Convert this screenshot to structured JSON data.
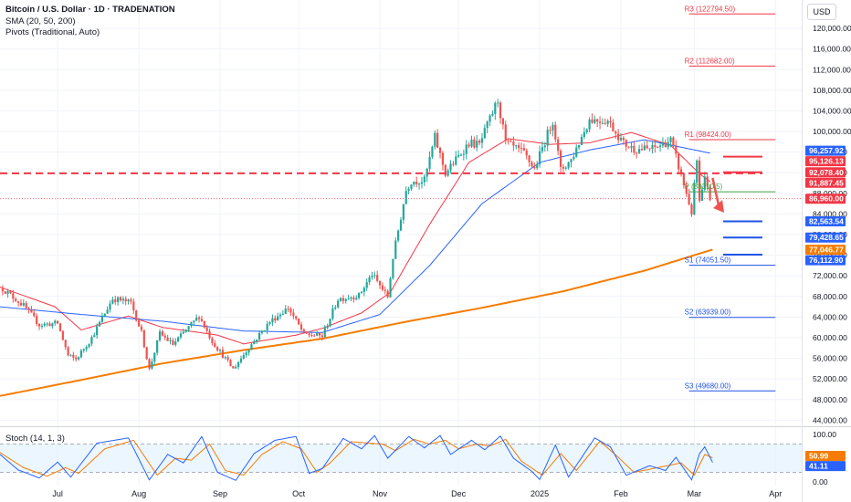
{
  "header": {
    "title": "Bitcoin / U.S. Dollar · 1D · TRADENATION",
    "sma_legend": "SMA (20, 50, 200)",
    "pivots_legend": "Pivots (Traditional, Auto)",
    "stoch_legend": "Stoch (14, 1, 3)",
    "currency": "USD"
  },
  "colors": {
    "up": "#26a69a",
    "down": "#ef5350",
    "sma20": "#f23645",
    "sma50": "#2962ff",
    "sma200": "#f57c00",
    "pivot_r": "#f23645",
    "pivot_p": "#43a047",
    "pivot_s": "#1e53e5",
    "stoch_k": "#2962ff",
    "stoch_d": "#f57c00"
  },
  "chart_data": {
    "type": "candlestick",
    "price_axis": {
      "ticks": [
        44000,
        48000,
        52000,
        56000,
        60000,
        64000,
        68000,
        72000,
        76000,
        80000,
        84000,
        88000,
        92000,
        96000,
        100000,
        104000,
        108000,
        112000,
        116000,
        120000
      ],
      "tick_labels": [
        "44,000.00",
        "48,000.00",
        "52,000.00",
        "56,000.00",
        "60,000.00",
        "64,000.00",
        "68,000.00",
        "72,000.00",
        "76,000.00",
        "80,000.00",
        "84,000.00",
        "88,000.00",
        "92,000.00",
        "96,000.00",
        "100,000.00",
        "104,000.00",
        "108,000.00",
        "112,000.00",
        "116,000.00",
        "120,000.00"
      ],
      "ylim": [
        43000,
        125500
      ]
    },
    "time_axis": {
      "labels": [
        {
          "label": "Jul",
          "date": "2024-07-01"
        },
        {
          "label": "Aug",
          "date": "2024-08-01"
        },
        {
          "label": "Sep",
          "date": "2024-09-01"
        },
        {
          "label": "Oct",
          "date": "2024-10-01"
        },
        {
          "label": "Nov",
          "date": "2024-11-01"
        },
        {
          "label": "Dec",
          "date": "2024-12-01"
        },
        {
          "label": "2025",
          "date": "2025-01-01"
        },
        {
          "label": "Feb",
          "date": "2025-02-01"
        },
        {
          "label": "Mar",
          "date": "2025-03-01"
        },
        {
          "label": "Apr",
          "date": "2025-04-01"
        }
      ],
      "range": [
        "2024-06-09",
        "2025-04-11"
      ]
    },
    "price_anchors": [
      {
        "date": "2024-06-10",
        "close": 69500
      },
      {
        "date": "2024-06-18",
        "close": 66200
      },
      {
        "date": "2024-06-24",
        "close": 62500
      },
      {
        "date": "2024-07-01",
        "close": 62800
      },
      {
        "date": "2024-07-05",
        "close": 56500
      },
      {
        "date": "2024-07-08",
        "close": 55800
      },
      {
        "date": "2024-07-14",
        "close": 60000
      },
      {
        "date": "2024-07-22",
        "close": 67600
      },
      {
        "date": "2024-07-29",
        "close": 66800
      },
      {
        "date": "2024-08-02",
        "close": 61000
      },
      {
        "date": "2024-08-05",
        "close": 53800
      },
      {
        "date": "2024-08-09",
        "close": 60800
      },
      {
        "date": "2024-08-14",
        "close": 58700
      },
      {
        "date": "2024-08-24",
        "close": 64200
      },
      {
        "date": "2024-08-29",
        "close": 59300
      },
      {
        "date": "2024-09-06",
        "close": 53900
      },
      {
        "date": "2024-09-12",
        "close": 58100
      },
      {
        "date": "2024-09-20",
        "close": 63100
      },
      {
        "date": "2024-09-27",
        "close": 65800
      },
      {
        "date": "2024-10-03",
        "close": 60700
      },
      {
        "date": "2024-10-10",
        "close": 60300
      },
      {
        "date": "2024-10-16",
        "close": 67500
      },
      {
        "date": "2024-10-24",
        "close": 68200
      },
      {
        "date": "2024-10-29",
        "close": 72300
      },
      {
        "date": "2024-11-04",
        "close": 67900
      },
      {
        "date": "2024-11-06",
        "close": 75600
      },
      {
        "date": "2024-11-11",
        "close": 88600
      },
      {
        "date": "2024-11-13",
        "close": 90400
      },
      {
        "date": "2024-11-18",
        "close": 90500
      },
      {
        "date": "2024-11-22",
        "close": 98900
      },
      {
        "date": "2024-11-26",
        "close": 91900
      },
      {
        "date": "2024-12-05",
        "close": 97800
      },
      {
        "date": "2024-12-09",
        "close": 97400
      },
      {
        "date": "2024-12-16",
        "close": 106100
      },
      {
        "date": "2024-12-19",
        "close": 97800
      },
      {
        "date": "2024-12-26",
        "close": 95700
      },
      {
        "date": "2024-12-30",
        "close": 92700
      },
      {
        "date": "2025-01-06",
        "close": 102200
      },
      {
        "date": "2025-01-09",
        "close": 92500
      },
      {
        "date": "2025-01-13",
        "close": 94500
      },
      {
        "date": "2025-01-20",
        "close": 102300
      },
      {
        "date": "2025-01-27",
        "close": 102100
      },
      {
        "date": "2025-02-02",
        "close": 97700
      },
      {
        "date": "2025-02-06",
        "close": 96600
      },
      {
        "date": "2025-02-13",
        "close": 96600
      },
      {
        "date": "2025-02-20",
        "close": 98300
      },
      {
        "date": "2025-02-24",
        "close": 91500
      },
      {
        "date": "2025-02-28",
        "close": 84300
      },
      {
        "date": "2025-03-02",
        "close": 94300
      },
      {
        "date": "2025-03-03",
        "close": 86100
      },
      {
        "date": "2025-03-05",
        "close": 90600
      },
      {
        "date": "2025-03-07",
        "close": 86900
      }
    ],
    "sma_anchors": {
      "SMA 20": [
        [
          "2024-06-09",
          69800
        ],
        [
          "2024-06-30",
          66000
        ],
        [
          "2024-07-10",
          61500
        ],
        [
          "2024-07-28",
          64200
        ],
        [
          "2024-08-10",
          62000
        ],
        [
          "2024-08-31",
          60500
        ],
        [
          "2024-09-10",
          58800
        ],
        [
          "2024-09-30",
          60500
        ],
        [
          "2024-10-10",
          61800
        ],
        [
          "2024-10-25",
          64800
        ],
        [
          "2024-11-05",
          68800
        ],
        [
          "2024-11-20",
          82000
        ],
        [
          "2024-12-05",
          94000
        ],
        [
          "2024-12-20",
          98600
        ],
        [
          "2025-01-05",
          97500
        ],
        [
          "2025-01-20",
          97800
        ],
        [
          "2025-02-05",
          99800
        ],
        [
          "2025-02-20",
          97300
        ],
        [
          "2025-03-03",
          91800
        ],
        [
          "2025-03-07",
          90300
        ]
      ],
      "SMA 50": [
        [
          "2024-06-09",
          66000
        ],
        [
          "2024-07-10",
          64500
        ],
        [
          "2024-08-10",
          63200
        ],
        [
          "2024-09-10",
          61300
        ],
        [
          "2024-10-10",
          61000
        ],
        [
          "2024-11-01",
          64500
        ],
        [
          "2024-11-20",
          74000
        ],
        [
          "2024-12-10",
          86000
        ],
        [
          "2025-01-01",
          94000
        ],
        [
          "2025-01-20",
          96400
        ],
        [
          "2025-02-10",
          98400
        ],
        [
          "2025-03-07",
          95800
        ]
      ],
      "SMA 200": [
        [
          "2024-06-09",
          48700
        ],
        [
          "2024-07-10",
          51800
        ],
        [
          "2024-08-10",
          55000
        ],
        [
          "2024-09-10",
          57600
        ],
        [
          "2024-10-10",
          59800
        ],
        [
          "2024-11-10",
          63000
        ],
        [
          "2024-12-10",
          65800
        ],
        [
          "2025-01-10",
          69000
        ],
        [
          "2025-02-10",
          73000
        ],
        [
          "2025-03-08",
          77100
        ]
      ]
    },
    "pivots": [
      {
        "name": "R3",
        "label": "R3 (122794.50)",
        "value": 122794.5,
        "from": "2025-02-27",
        "to": "2025-04-01"
      },
      {
        "name": "R2",
        "label": "R2 (112682.00)",
        "value": 112682.0,
        "from": "2025-02-27",
        "to": "2025-04-01"
      },
      {
        "name": "R1",
        "label": "R1 (98424.00)",
        "value": 98424.0,
        "from": "2025-02-27",
        "to": "2025-04-01"
      },
      {
        "name": "P",
        "label": "P (88310.5)",
        "value": 88310.5,
        "from": "2025-02-27",
        "to": "2025-04-01"
      },
      {
        "name": "S1",
        "label": "S1 (74051.50)",
        "value": 74051.5,
        "from": "2025-02-27",
        "to": "2025-04-01"
      },
      {
        "name": "S2",
        "label": "S2 (63939.00)",
        "value": 63939.0,
        "from": "2025-02-27",
        "to": "2025-04-01"
      },
      {
        "name": "S3",
        "label": "S3 (49680.00)",
        "value": 49680.0,
        "from": "2025-02-27",
        "to": "2025-04-01"
      }
    ],
    "drawn_levels": [
      {
        "value": 91887.45,
        "style": "dashed",
        "color": "#f23645",
        "from": "2024-06-09",
        "to": "2025-03-27"
      },
      {
        "value": 92078.4,
        "style": "solid",
        "color": "#f23645",
        "from": "2025-03-12",
        "to": "2025-03-27"
      },
      {
        "value": 95126.13,
        "style": "solid",
        "color": "#f23645",
        "from": "2025-03-12",
        "to": "2025-03-27"
      },
      {
        "value": 82563.54,
        "style": "solid",
        "color": "#1e53e5",
        "from": "2025-03-12",
        "to": "2025-03-27"
      },
      {
        "value": 79428.65,
        "style": "solid",
        "color": "#1e53e5",
        "from": "2025-03-12",
        "to": "2025-03-27"
      },
      {
        "value": 76112.9,
        "style": "solid",
        "color": "#1e53e5",
        "from": "2025-03-12",
        "to": "2025-03-27"
      }
    ],
    "last_price": 86960.0,
    "arrow": {
      "from_date": "2025-03-08",
      "from_value": 91000,
      "to_date": "2025-03-11",
      "to_value": 84600
    },
    "price_badges": [
      {
        "label": "96,257.92",
        "value": 96257.92,
        "color": "#2962ff"
      },
      {
        "label": "95,126.13",
        "value": 95126.13,
        "color": "#f23645"
      },
      {
        "label": "92,078.40",
        "value": 92078.4,
        "color": "#f23645"
      },
      {
        "label": "91,887.45",
        "value": 91887.45,
        "color": "#f23645"
      },
      {
        "label": "86,960.00",
        "value": 86960.0,
        "color": "#f23645"
      },
      {
        "label": "82,563.54",
        "value": 82563.54,
        "color": "#2962ff"
      },
      {
        "label": "79,428.65",
        "value": 79428.65,
        "color": "#2962ff"
      },
      {
        "label": "77,046.77",
        "value": 77046.77,
        "color": "#f57c00"
      },
      {
        "label": "76,112.90",
        "value": 76112.9,
        "color": "#2962ff"
      }
    ],
    "stoch": {
      "ticks": [
        0,
        50,
        100
      ],
      "tick_labels": [
        "0.00",
        "50.00",
        "100.00"
      ],
      "ylim": [
        -8,
        112
      ],
      "band": [
        20,
        80
      ],
      "k_last": 41.11,
      "d_last": 50.99,
      "k_label": "41.11",
      "d_label": "50.99",
      "k_anchors": [
        [
          "2024-06-09",
          58
        ],
        [
          "2024-06-16",
          25
        ],
        [
          "2024-06-24",
          8
        ],
        [
          "2024-07-01",
          42
        ],
        [
          "2024-07-06",
          10
        ],
        [
          "2024-07-16",
          82
        ],
        [
          "2024-07-28",
          93
        ],
        [
          "2024-08-05",
          4
        ],
        [
          "2024-08-12",
          58
        ],
        [
          "2024-08-18",
          40
        ],
        [
          "2024-08-25",
          96
        ],
        [
          "2024-08-31",
          20
        ],
        [
          "2024-09-07",
          3
        ],
        [
          "2024-09-14",
          60
        ],
        [
          "2024-09-22",
          88
        ],
        [
          "2024-09-30",
          96
        ],
        [
          "2024-10-05",
          18
        ],
        [
          "2024-10-10",
          28
        ],
        [
          "2024-10-18",
          92
        ],
        [
          "2024-10-25",
          70
        ],
        [
          "2024-10-30",
          98
        ],
        [
          "2024-11-04",
          50
        ],
        [
          "2024-11-12",
          96
        ],
        [
          "2024-11-18",
          72
        ],
        [
          "2024-11-24",
          98
        ],
        [
          "2024-11-28",
          58
        ],
        [
          "2024-12-06",
          88
        ],
        [
          "2024-12-11",
          68
        ],
        [
          "2024-12-17",
          97
        ],
        [
          "2024-12-22",
          50
        ],
        [
          "2024-12-29",
          22
        ],
        [
          "2025-01-01",
          5
        ],
        [
          "2025-01-07",
          78
        ],
        [
          "2025-01-12",
          10
        ],
        [
          "2025-01-22",
          93
        ],
        [
          "2025-01-28",
          74
        ],
        [
          "2025-02-03",
          14
        ],
        [
          "2025-02-12",
          34
        ],
        [
          "2025-02-18",
          24
        ],
        [
          "2025-02-22",
          52
        ],
        [
          "2025-02-28",
          4
        ],
        [
          "2025-03-03",
          60
        ],
        [
          "2025-03-05",
          74
        ],
        [
          "2025-03-08",
          41
        ]
      ],
      "d_anchors": [
        [
          "2024-06-09",
          62
        ],
        [
          "2024-06-18",
          30
        ],
        [
          "2024-06-27",
          12
        ],
        [
          "2024-07-04",
          30
        ],
        [
          "2024-07-09",
          18
        ],
        [
          "2024-07-19",
          70
        ],
        [
          "2024-07-30",
          88
        ],
        [
          "2024-08-08",
          14
        ],
        [
          "2024-08-15",
          50
        ],
        [
          "2024-08-21",
          46
        ],
        [
          "2024-08-28",
          80
        ],
        [
          "2024-09-03",
          24
        ],
        [
          "2024-09-10",
          14
        ],
        [
          "2024-09-17",
          58
        ],
        [
          "2024-09-25",
          85
        ],
        [
          "2024-10-02",
          70
        ],
        [
          "2024-10-08",
          20
        ],
        [
          "2024-10-13",
          40
        ],
        [
          "2024-10-21",
          85
        ],
        [
          "2024-10-28",
          82
        ],
        [
          "2024-11-02",
          80
        ],
        [
          "2024-11-07",
          66
        ],
        [
          "2024-11-14",
          90
        ],
        [
          "2024-11-20",
          80
        ],
        [
          "2024-11-26",
          88
        ],
        [
          "2024-12-01",
          70
        ],
        [
          "2024-12-08",
          80
        ],
        [
          "2024-12-13",
          76
        ],
        [
          "2024-12-19",
          90
        ],
        [
          "2024-12-25",
          44
        ],
        [
          "2025-01-02",
          14
        ],
        [
          "2025-01-09",
          60
        ],
        [
          "2025-01-15",
          24
        ],
        [
          "2025-01-24",
          86
        ],
        [
          "2025-01-31",
          52
        ],
        [
          "2025-02-06",
          20
        ],
        [
          "2025-02-15",
          30
        ],
        [
          "2025-02-24",
          40
        ],
        [
          "2025-03-01",
          14
        ],
        [
          "2025-03-05",
          58
        ],
        [
          "2025-03-08",
          51
        ]
      ]
    }
  }
}
